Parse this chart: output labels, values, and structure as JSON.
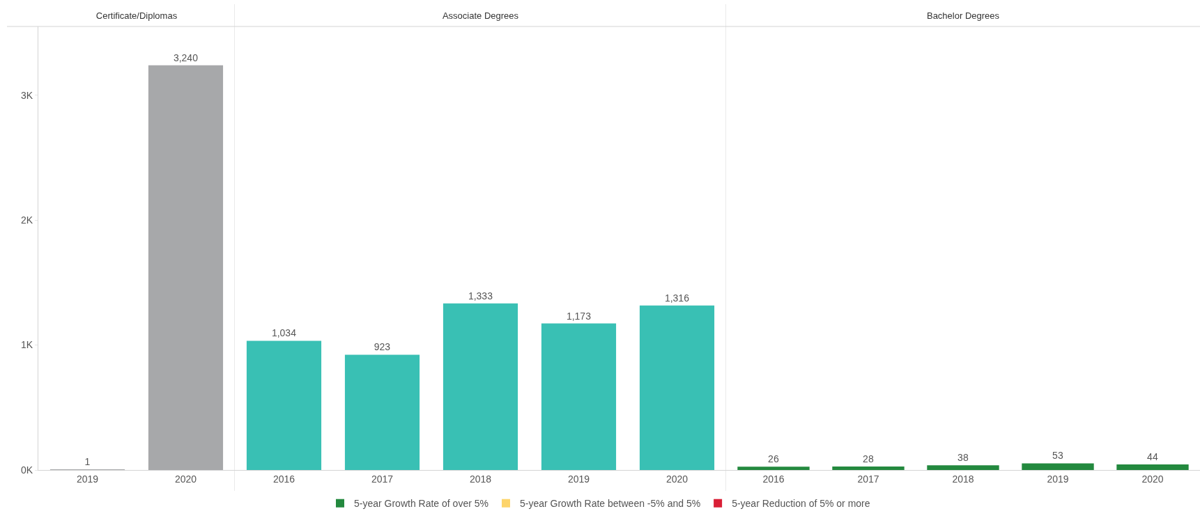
{
  "chart_data": [
    {
      "type": "bar",
      "title": "Certificate/Diplomas",
      "categories": [
        "2019",
        "2020"
      ],
      "values": [
        1,
        3240
      ],
      "value_labels": [
        "1",
        "3,240"
      ],
      "color": "#a7a8aa",
      "ylim": [
        0,
        3550
      ],
      "yticks": [
        {
          "value": 0,
          "label": "0K"
        },
        {
          "value": 1000,
          "label": "1K"
        },
        {
          "value": 2000,
          "label": "2K"
        },
        {
          "value": 3000,
          "label": "3K"
        }
      ]
    },
    {
      "type": "bar",
      "title": "Associate Degrees",
      "categories": [
        "2016",
        "2017",
        "2018",
        "2019",
        "2020"
      ],
      "values": [
        1034,
        923,
        1333,
        1173,
        1316
      ],
      "value_labels": [
        "1,034",
        "923",
        "1,333",
        "1,173",
        "1,316"
      ],
      "color": "#39c0b4",
      "ylim": [
        0,
        3550
      ],
      "tick_labels": "x"
    },
    {
      "type": "bar",
      "title": "Bachelor Degrees",
      "categories": [
        "2016",
        "2017",
        "2018",
        "2019",
        "2020"
      ],
      "series": [
        {
          "name": "5-year Growth Rate of over 5%",
          "color": "#23893e",
          "values": [
            26,
            28,
            38,
            53,
            44
          ]
        },
        {
          "name": "5-year Growth Rate between -5% and 5%",
          "color": "#fdd46b",
          "values": [
            null,
            null,
            null,
            null,
            null
          ]
        },
        {
          "name": "5-year Reduction of 5% or more",
          "color": "#d91f36",
          "values": [
            null,
            null,
            null,
            null,
            null
          ]
        }
      ],
      "ylim": [
        0,
        3550
      ],
      "data_labels": true,
      "tick_labels": "x",
      "legend": "bottom"
    }
  ]
}
